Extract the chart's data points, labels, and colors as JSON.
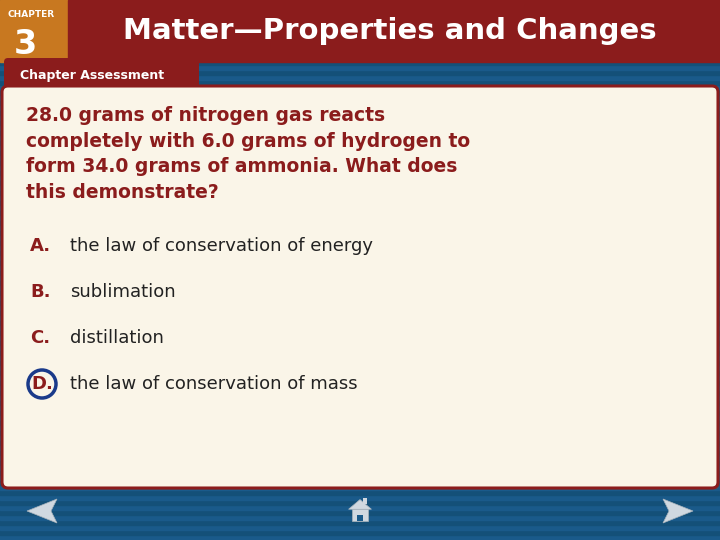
{
  "title": "Matter—Properties and Changes",
  "chapter_label": "CHAPTER",
  "chapter_number": "3",
  "tab_label": "Chapter Assessment",
  "question": "28.0 grams of nitrogen gas reacts\ncompletely with 6.0 grams of hydrogen to\nform 34.0 grams of ammonia. What does\nthis demonstrate?",
  "options": [
    {
      "letter": "A.",
      "text": "the law of conservation of energy",
      "correct": false
    },
    {
      "letter": "B.",
      "text": "sublimation",
      "correct": false
    },
    {
      "letter": "C.",
      "text": "distillation",
      "correct": false
    },
    {
      "letter": "D.",
      "text": "the law of conservation of mass",
      "correct": true
    }
  ],
  "bg_blue": "#1a5a8a",
  "bg_stripe1": "#1a5a8a",
  "bg_stripe2": "#155070",
  "header_red": "#8b1c1c",
  "header_orange": "#c87820",
  "tab_red": "#8b1c1c",
  "card_bg": "#faf5e8",
  "card_border": "#8b1c1c",
  "question_color": "#8b1c1c",
  "option_letter_color": "#8b1c1c",
  "option_text_color": "#222222",
  "title_color": "#ffffff",
  "chapter_color": "#ffffff",
  "tab_text_color": "#ffffff",
  "correct_circle_edge": "#1a3a8a",
  "correct_circle_fill": "#faf5e8",
  "nav_icon_color": "#d0d8e0"
}
